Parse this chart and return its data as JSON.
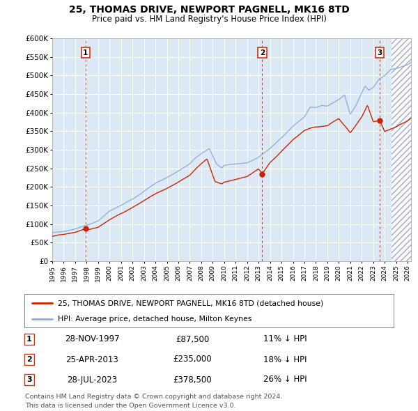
{
  "title": "25, THOMAS DRIVE, NEWPORT PAGNELL, MK16 8TD",
  "subtitle": "Price paid vs. HM Land Registry's House Price Index (HPI)",
  "ylim": [
    0,
    600000
  ],
  "yticks": [
    0,
    50000,
    100000,
    150000,
    200000,
    250000,
    300000,
    350000,
    400000,
    450000,
    500000,
    550000,
    600000
  ],
  "ytick_labels": [
    "£0",
    "£50K",
    "£100K",
    "£150K",
    "£200K",
    "£250K",
    "£300K",
    "£350K",
    "£400K",
    "£450K",
    "£500K",
    "£550K",
    "£600K"
  ],
  "xlim_start": 1995.0,
  "xlim_end": 2026.3,
  "plot_bg_color": "#dce9f5",
  "hpi_line_color": "#88aadd",
  "price_line_color": "#cc2200",
  "vline_color": "#cc3311",
  "sale1_date": 1997.91,
  "sale1_price": 87500,
  "sale2_date": 2013.32,
  "sale2_price": 235000,
  "sale3_date": 2023.57,
  "sale3_price": 378500,
  "legend_label1": "25, THOMAS DRIVE, NEWPORT PAGNELL, MK16 8TD (detached house)",
  "legend_label2": "HPI: Average price, detached house, Milton Keynes",
  "table_rows": [
    {
      "num": "1",
      "date": "28-NOV-1997",
      "price": "£87,500",
      "hpi": "11% ↓ HPI"
    },
    {
      "num": "2",
      "date": "25-APR-2013",
      "price": "£235,000",
      "hpi": "18% ↓ HPI"
    },
    {
      "num": "3",
      "date": "28-JUL-2023",
      "price": "£378,500",
      "hpi": "26% ↓ HPI"
    }
  ],
  "footnote1": "Contains HM Land Registry data © Crown copyright and database right 2024.",
  "footnote2": "This data is licensed under the Open Government Licence v3.0.",
  "future_start": 2024.58,
  "hpi_key_years": [
    1995,
    1996,
    1997,
    1998,
    1999,
    2000,
    2001,
    2002,
    2003,
    2004,
    2005,
    2006,
    2007,
    2007.5,
    2008.0,
    2008.7,
    2009.3,
    2009.8,
    2010,
    2011,
    2012,
    2013,
    2014,
    2015,
    2016,
    2017,
    2017.5,
    2018,
    2018.5,
    2019,
    2020,
    2020.5,
    2021,
    2021.5,
    2022,
    2022.3,
    2022.6,
    2023,
    2023.5,
    2024,
    2024.5,
    2025,
    2026,
    2026.3
  ],
  "hpi_key_vals": [
    77000,
    80000,
    87000,
    97000,
    108000,
    135000,
    150000,
    168000,
    188000,
    210000,
    225000,
    243000,
    262000,
    278000,
    290000,
    303000,
    263000,
    252000,
    258000,
    262000,
    265000,
    280000,
    304000,
    333000,
    363000,
    390000,
    415000,
    413000,
    420000,
    418000,
    435000,
    448000,
    395000,
    420000,
    455000,
    472000,
    460000,
    468000,
    490000,
    500000,
    515000,
    518000,
    528000,
    535000
  ],
  "price_key_years": [
    1995,
    1996,
    1997,
    1997.91,
    1998,
    1999,
    2000,
    2001,
    2002,
    2003,
    2004,
    2005,
    2006,
    2007,
    2007.5,
    2008.0,
    2008.5,
    2009.2,
    2009.8,
    2010,
    2011,
    2012,
    2013,
    2013.32,
    2014,
    2015,
    2016,
    2017,
    2018,
    2019,
    2020,
    2021,
    2022,
    2022.5,
    2023,
    2023.57,
    2024,
    2025,
    2026,
    2026.3
  ],
  "price_key_vals": [
    68000,
    72000,
    78000,
    87500,
    84000,
    92000,
    112000,
    128000,
    145000,
    163000,
    182000,
    196000,
    213000,
    232000,
    248000,
    262000,
    275000,
    215000,
    208000,
    213000,
    220000,
    228000,
    248000,
    235000,
    265000,
    295000,
    327000,
    352000,
    362000,
    365000,
    385000,
    345000,
    388000,
    420000,
    375000,
    378500,
    350000,
    362000,
    378000,
    385000
  ]
}
